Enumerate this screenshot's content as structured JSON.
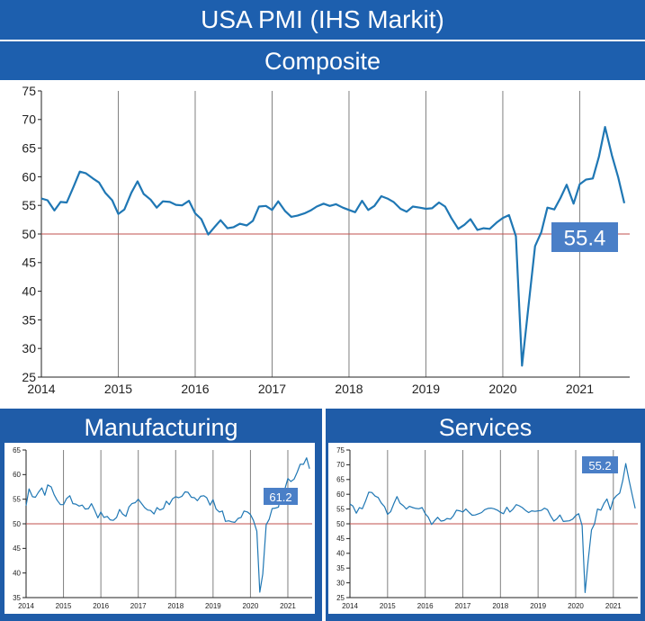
{
  "header": {
    "title": "USA PMI (IHS Markit)"
  },
  "colors": {
    "line": "#1f77b4",
    "reference": "#c0504d",
    "badge": "#4a7fc7",
    "grid": "#808080"
  },
  "chart_data": [
    {
      "type": "line",
      "title": "Composite",
      "xlabel": "",
      "ylabel": "",
      "xlim": [
        2014.0,
        2021.65
      ],
      "ylim": [
        25,
        75
      ],
      "yticks": [
        25,
        30,
        35,
        40,
        45,
        50,
        55,
        60,
        65,
        70,
        75
      ],
      "xticks": [
        2014,
        2015,
        2016,
        2017,
        2018,
        2019,
        2020,
        2021
      ],
      "xtick_labels": [
        "2014",
        "2015",
        "2016",
        "2017",
        "2018",
        "2019",
        "2020",
        "2021"
      ],
      "reference_line": 50,
      "grid": "vertical at years",
      "last_value_label": "55.4",
      "series": [
        {
          "x": [
            2014.0,
            2014.08,
            2014.17,
            2014.25,
            2014.33,
            2014.42,
            2014.5,
            2014.58,
            2014.67,
            2014.75,
            2014.83,
            2014.92,
            2015.0,
            2015.08,
            2015.17,
            2015.25,
            2015.33,
            2015.42,
            2015.5,
            2015.58,
            2015.67,
            2015.75,
            2015.83,
            2015.92,
            2016.0,
            2016.08,
            2016.17,
            2016.25,
            2016.33,
            2016.42,
            2016.5,
            2016.58,
            2016.67,
            2016.75,
            2016.83,
            2016.92,
            2017.0,
            2017.08,
            2017.17,
            2017.25,
            2017.33,
            2017.42,
            2017.5,
            2017.58,
            2017.67,
            2017.75,
            2017.83,
            2017.92,
            2018.0,
            2018.08,
            2018.17,
            2018.25,
            2018.33,
            2018.42,
            2018.5,
            2018.58,
            2018.67,
            2018.75,
            2018.83,
            2018.92,
            2019.0,
            2019.08,
            2019.17,
            2019.25,
            2019.33,
            2019.42,
            2019.5,
            2019.58,
            2019.67,
            2019.75,
            2019.83,
            2019.92,
            2020.0,
            2020.08,
            2020.17,
            2020.25,
            2020.33,
            2020.42,
            2020.5,
            2020.58,
            2020.67,
            2020.75,
            2020.83,
            2020.92,
            2021.0,
            2021.08,
            2021.17,
            2021.25,
            2021.33,
            2021.42,
            2021.5,
            2021.58
          ],
          "y": [
            56.2,
            55.9,
            54.1,
            55.6,
            55.5,
            58.3,
            60.9,
            60.6,
            59.7,
            59.0,
            57.2,
            55.9,
            53.5,
            54.3,
            57.2,
            59.2,
            57.0,
            56.0,
            54.6,
            55.7,
            55.6,
            55.1,
            55.0,
            55.8,
            53.6,
            52.6,
            49.9,
            51.2,
            52.4,
            51.0,
            51.2,
            51.8,
            51.5,
            52.3,
            54.8,
            54.9,
            54.2,
            55.7,
            54.0,
            53.0,
            53.2,
            53.6,
            54.1,
            54.8,
            55.3,
            54.9,
            55.2,
            54.6,
            54.2,
            53.8,
            55.8,
            54.2,
            54.9,
            56.6,
            56.2,
            55.6,
            54.4,
            53.9,
            54.8,
            54.6,
            54.4,
            54.5,
            55.5,
            54.8,
            52.8,
            50.9,
            51.6,
            52.6,
            50.7,
            51.0,
            50.9,
            52.0,
            52.8,
            53.3,
            49.6,
            27.0,
            37.0,
            47.9,
            50.3,
            54.6,
            54.3,
            56.3,
            58.6,
            55.3,
            58.7,
            59.5,
            59.7,
            63.5,
            68.7,
            63.7,
            59.9,
            55.4
          ]
        }
      ]
    },
    {
      "type": "line",
      "title": "Manufacturing",
      "xlabel": "",
      "ylabel": "",
      "xlim": [
        2014.0,
        2021.65
      ],
      "ylim": [
        35,
        65
      ],
      "yticks": [
        35,
        40,
        45,
        50,
        55,
        60,
        65
      ],
      "xticks": [
        2014,
        2015,
        2016,
        2017,
        2018,
        2019,
        2020,
        2021
      ],
      "xtick_labels": [
        "2014",
        "2015",
        "2016",
        "2017",
        "2018",
        "2019",
        "2020",
        "2021"
      ],
      "reference_line": 50,
      "grid": "vertical at years",
      "last_value_label": "61.2",
      "series": [
        {
          "x": [
            2014.0,
            2014.08,
            2014.17,
            2014.25,
            2014.33,
            2014.42,
            2014.5,
            2014.58,
            2014.67,
            2014.75,
            2014.83,
            2014.92,
            2015.0,
            2015.08,
            2015.17,
            2015.25,
            2015.33,
            2015.42,
            2015.5,
            2015.58,
            2015.67,
            2015.75,
            2015.83,
            2015.92,
            2016.0,
            2016.08,
            2016.17,
            2016.25,
            2016.33,
            2016.42,
            2016.5,
            2016.58,
            2016.67,
            2016.75,
            2016.83,
            2016.92,
            2017.0,
            2017.08,
            2017.17,
            2017.25,
            2017.33,
            2017.42,
            2017.5,
            2017.58,
            2017.67,
            2017.75,
            2017.83,
            2017.92,
            2018.0,
            2018.08,
            2018.17,
            2018.25,
            2018.33,
            2018.42,
            2018.5,
            2018.58,
            2018.67,
            2018.75,
            2018.83,
            2018.92,
            2019.0,
            2019.08,
            2019.17,
            2019.25,
            2019.33,
            2019.42,
            2019.5,
            2019.58,
            2019.67,
            2019.75,
            2019.83,
            2019.92,
            2020.0,
            2020.08,
            2020.17,
            2020.25,
            2020.33,
            2020.42,
            2020.5,
            2020.58,
            2020.67,
            2020.75,
            2020.83,
            2020.92,
            2021.0,
            2021.08,
            2021.17,
            2021.25,
            2021.33,
            2021.42,
            2021.5,
            2021.58
          ],
          "y": [
            53.7,
            57.1,
            55.5,
            55.4,
            56.4,
            57.3,
            55.8,
            57.9,
            57.5,
            55.9,
            54.8,
            53.9,
            53.9,
            55.1,
            55.7,
            54.1,
            54.0,
            53.6,
            53.8,
            53.0,
            53.1,
            54.1,
            52.8,
            51.2,
            52.4,
            51.3,
            51.5,
            50.8,
            50.7,
            51.3,
            52.9,
            52.0,
            51.5,
            53.4,
            54.1,
            54.3,
            55.0,
            54.2,
            53.3,
            52.8,
            52.7,
            52.0,
            53.3,
            52.8,
            53.1,
            54.6,
            53.9,
            55.1,
            55.5,
            55.3,
            55.6,
            56.5,
            56.4,
            55.4,
            55.3,
            54.7,
            55.6,
            55.7,
            55.3,
            53.8,
            54.9,
            53.0,
            52.4,
            52.6,
            50.5,
            50.6,
            50.4,
            50.3,
            51.1,
            51.3,
            52.6,
            52.4,
            51.9,
            50.7,
            48.5,
            36.1,
            39.8,
            49.8,
            50.9,
            53.1,
            53.2,
            53.4,
            56.7,
            57.1,
            59.2,
            58.6,
            59.1,
            60.5,
            62.1,
            62.1,
            63.4,
            61.2
          ]
        }
      ]
    },
    {
      "type": "line",
      "title": "Services",
      "xlabel": "",
      "ylabel": "",
      "xlim": [
        2014.0,
        2021.65
      ],
      "ylim": [
        25,
        75
      ],
      "yticks": [
        25,
        30,
        35,
        40,
        45,
        50,
        55,
        60,
        65,
        70,
        75
      ],
      "xticks": [
        2014,
        2015,
        2016,
        2017,
        2018,
        2019,
        2020,
        2021
      ],
      "xtick_labels": [
        "2014",
        "2015",
        "2016",
        "2017",
        "2018",
        "2019",
        "2020",
        "2021"
      ],
      "reference_line": 50,
      "grid": "vertical at years",
      "last_value_label": "55.2",
      "series": [
        {
          "x": [
            2014.0,
            2014.08,
            2014.17,
            2014.25,
            2014.33,
            2014.42,
            2014.5,
            2014.58,
            2014.67,
            2014.75,
            2014.83,
            2014.92,
            2015.0,
            2015.08,
            2015.17,
            2015.25,
            2015.33,
            2015.42,
            2015.5,
            2015.58,
            2015.67,
            2015.75,
            2015.83,
            2015.92,
            2016.0,
            2016.08,
            2016.17,
            2016.25,
            2016.33,
            2016.42,
            2016.5,
            2016.58,
            2016.67,
            2016.75,
            2016.83,
            2016.92,
            2017.0,
            2017.08,
            2017.17,
            2017.25,
            2017.33,
            2017.42,
            2017.5,
            2017.58,
            2017.67,
            2017.75,
            2017.83,
            2017.92,
            2018.0,
            2018.08,
            2018.17,
            2018.25,
            2018.33,
            2018.42,
            2018.5,
            2018.58,
            2018.67,
            2018.75,
            2018.83,
            2018.92,
            2019.0,
            2019.08,
            2019.17,
            2019.25,
            2019.33,
            2019.42,
            2019.5,
            2019.58,
            2019.67,
            2019.75,
            2019.83,
            2019.92,
            2020.0,
            2020.08,
            2020.17,
            2020.25,
            2020.33,
            2020.42,
            2020.5,
            2020.58,
            2020.67,
            2020.75,
            2020.83,
            2020.92,
            2021.0,
            2021.08,
            2021.17,
            2021.25,
            2021.33,
            2021.42,
            2021.5,
            2021.58
          ],
          "y": [
            56.7,
            56.0,
            53.6,
            55.5,
            55.1,
            57.9,
            60.7,
            60.6,
            59.4,
            58.9,
            57.1,
            55.8,
            53.2,
            54.1,
            56.9,
            59.2,
            57.0,
            56.1,
            55.0,
            55.9,
            55.5,
            55.2,
            55.1,
            55.5,
            53.4,
            52.3,
            49.8,
            51.0,
            52.2,
            50.9,
            51.1,
            51.8,
            51.6,
            52.7,
            54.6,
            54.4,
            54.0,
            55.0,
            53.8,
            52.9,
            53.0,
            53.4,
            53.8,
            54.8,
            55.2,
            55.3,
            55.1,
            54.6,
            53.9,
            53.4,
            55.6,
            54.0,
            54.9,
            56.5,
            56.1,
            55.5,
            54.5,
            53.8,
            54.4,
            54.2,
            54.4,
            54.5,
            55.3,
            54.8,
            52.7,
            50.9,
            51.7,
            53.0,
            50.8,
            50.9,
            51.0,
            51.6,
            52.8,
            53.4,
            49.4,
            26.7,
            37.5,
            47.9,
            50.0,
            55.0,
            54.6,
            56.9,
            58.4,
            54.8,
            58.3,
            59.5,
            60.4,
            64.7,
            70.4,
            64.6,
            59.9,
            55.2
          ]
        }
      ]
    }
  ]
}
